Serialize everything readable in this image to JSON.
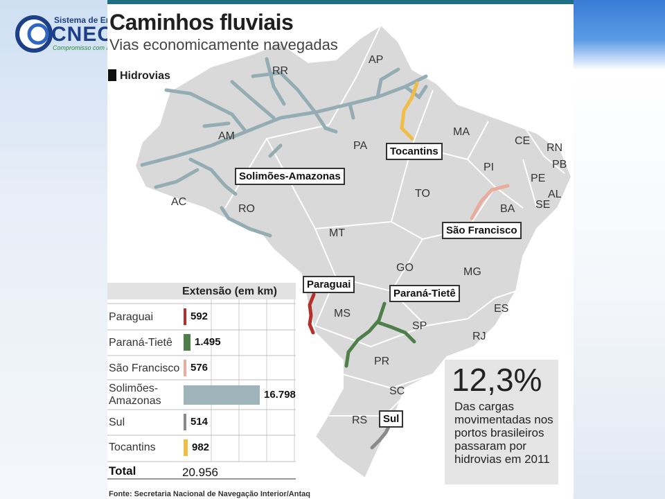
{
  "logo": {
    "top_text": "Sistema de Ensi",
    "main_text": "CNEC",
    "slogan": "Compromisso com a e"
  },
  "infographic": {
    "title": "Caminhos fluviais",
    "subtitle": "Vias economicamente navegadas",
    "legend_label": "Hidrovias"
  },
  "states": {
    "AP": "AP",
    "RR": "RR",
    "AM": "AM",
    "PA": "PA",
    "MA": "MA",
    "CE": "CE",
    "RN": "RN",
    "PB": "PB",
    "PI": "PI",
    "PE": "PE",
    "AL": "AL",
    "SE": "SE",
    "BA": "BA",
    "TO": "TO",
    "AC": "AC",
    "RO": "RO",
    "MT": "MT",
    "GO": "GO",
    "MG": "MG",
    "ES": "ES",
    "MS": "MS",
    "SP": "SP",
    "RJ": "RJ",
    "PR": "PR",
    "SC": "SC",
    "RS": "RS"
  },
  "callouts": {
    "tocantins": "Tocantins",
    "solimoes": "Solimões-Amazonas",
    "sao_francisco": "São Francisco",
    "paraguai": "Paraguai",
    "parana_tiete": "Paraná-Tietê",
    "sul": "Sul"
  },
  "table": {
    "header": "Extensão (em km)",
    "rows": [
      {
        "name": "Paraguai",
        "value": "592",
        "km": 592,
        "color": "#b5302a"
      },
      {
        "name": "Paraná-Tietê",
        "value": "1.495",
        "km": 1495,
        "color": "#4e7f4a"
      },
      {
        "name": "São Francisco",
        "value": "576",
        "km": 576,
        "color": "#e9ab9b"
      },
      {
        "name": "Solimões-Amazonas",
        "value": "16.798",
        "km": 16798,
        "color": "#9fb3ba"
      },
      {
        "name": "Sul",
        "value": "514",
        "km": 514,
        "color": "#8a8a8a"
      },
      {
        "name": "Tocantins",
        "value": "982",
        "km": 982,
        "color": "#f1bd45"
      }
    ],
    "row_label_lines": {
      "solimoes_line1": "Solimões-",
      "solimoes_line2": "Amazonas"
    },
    "total_label": "Total",
    "total_value": "20.956"
  },
  "stat": {
    "big": "12,3%",
    "text": "Das cargas movimentadas nos portos brasileiros passaram por hidrovias em 2011"
  },
  "footer": "Fonte: Secretaria Nacional de Navegação Interior/Antaq"
}
